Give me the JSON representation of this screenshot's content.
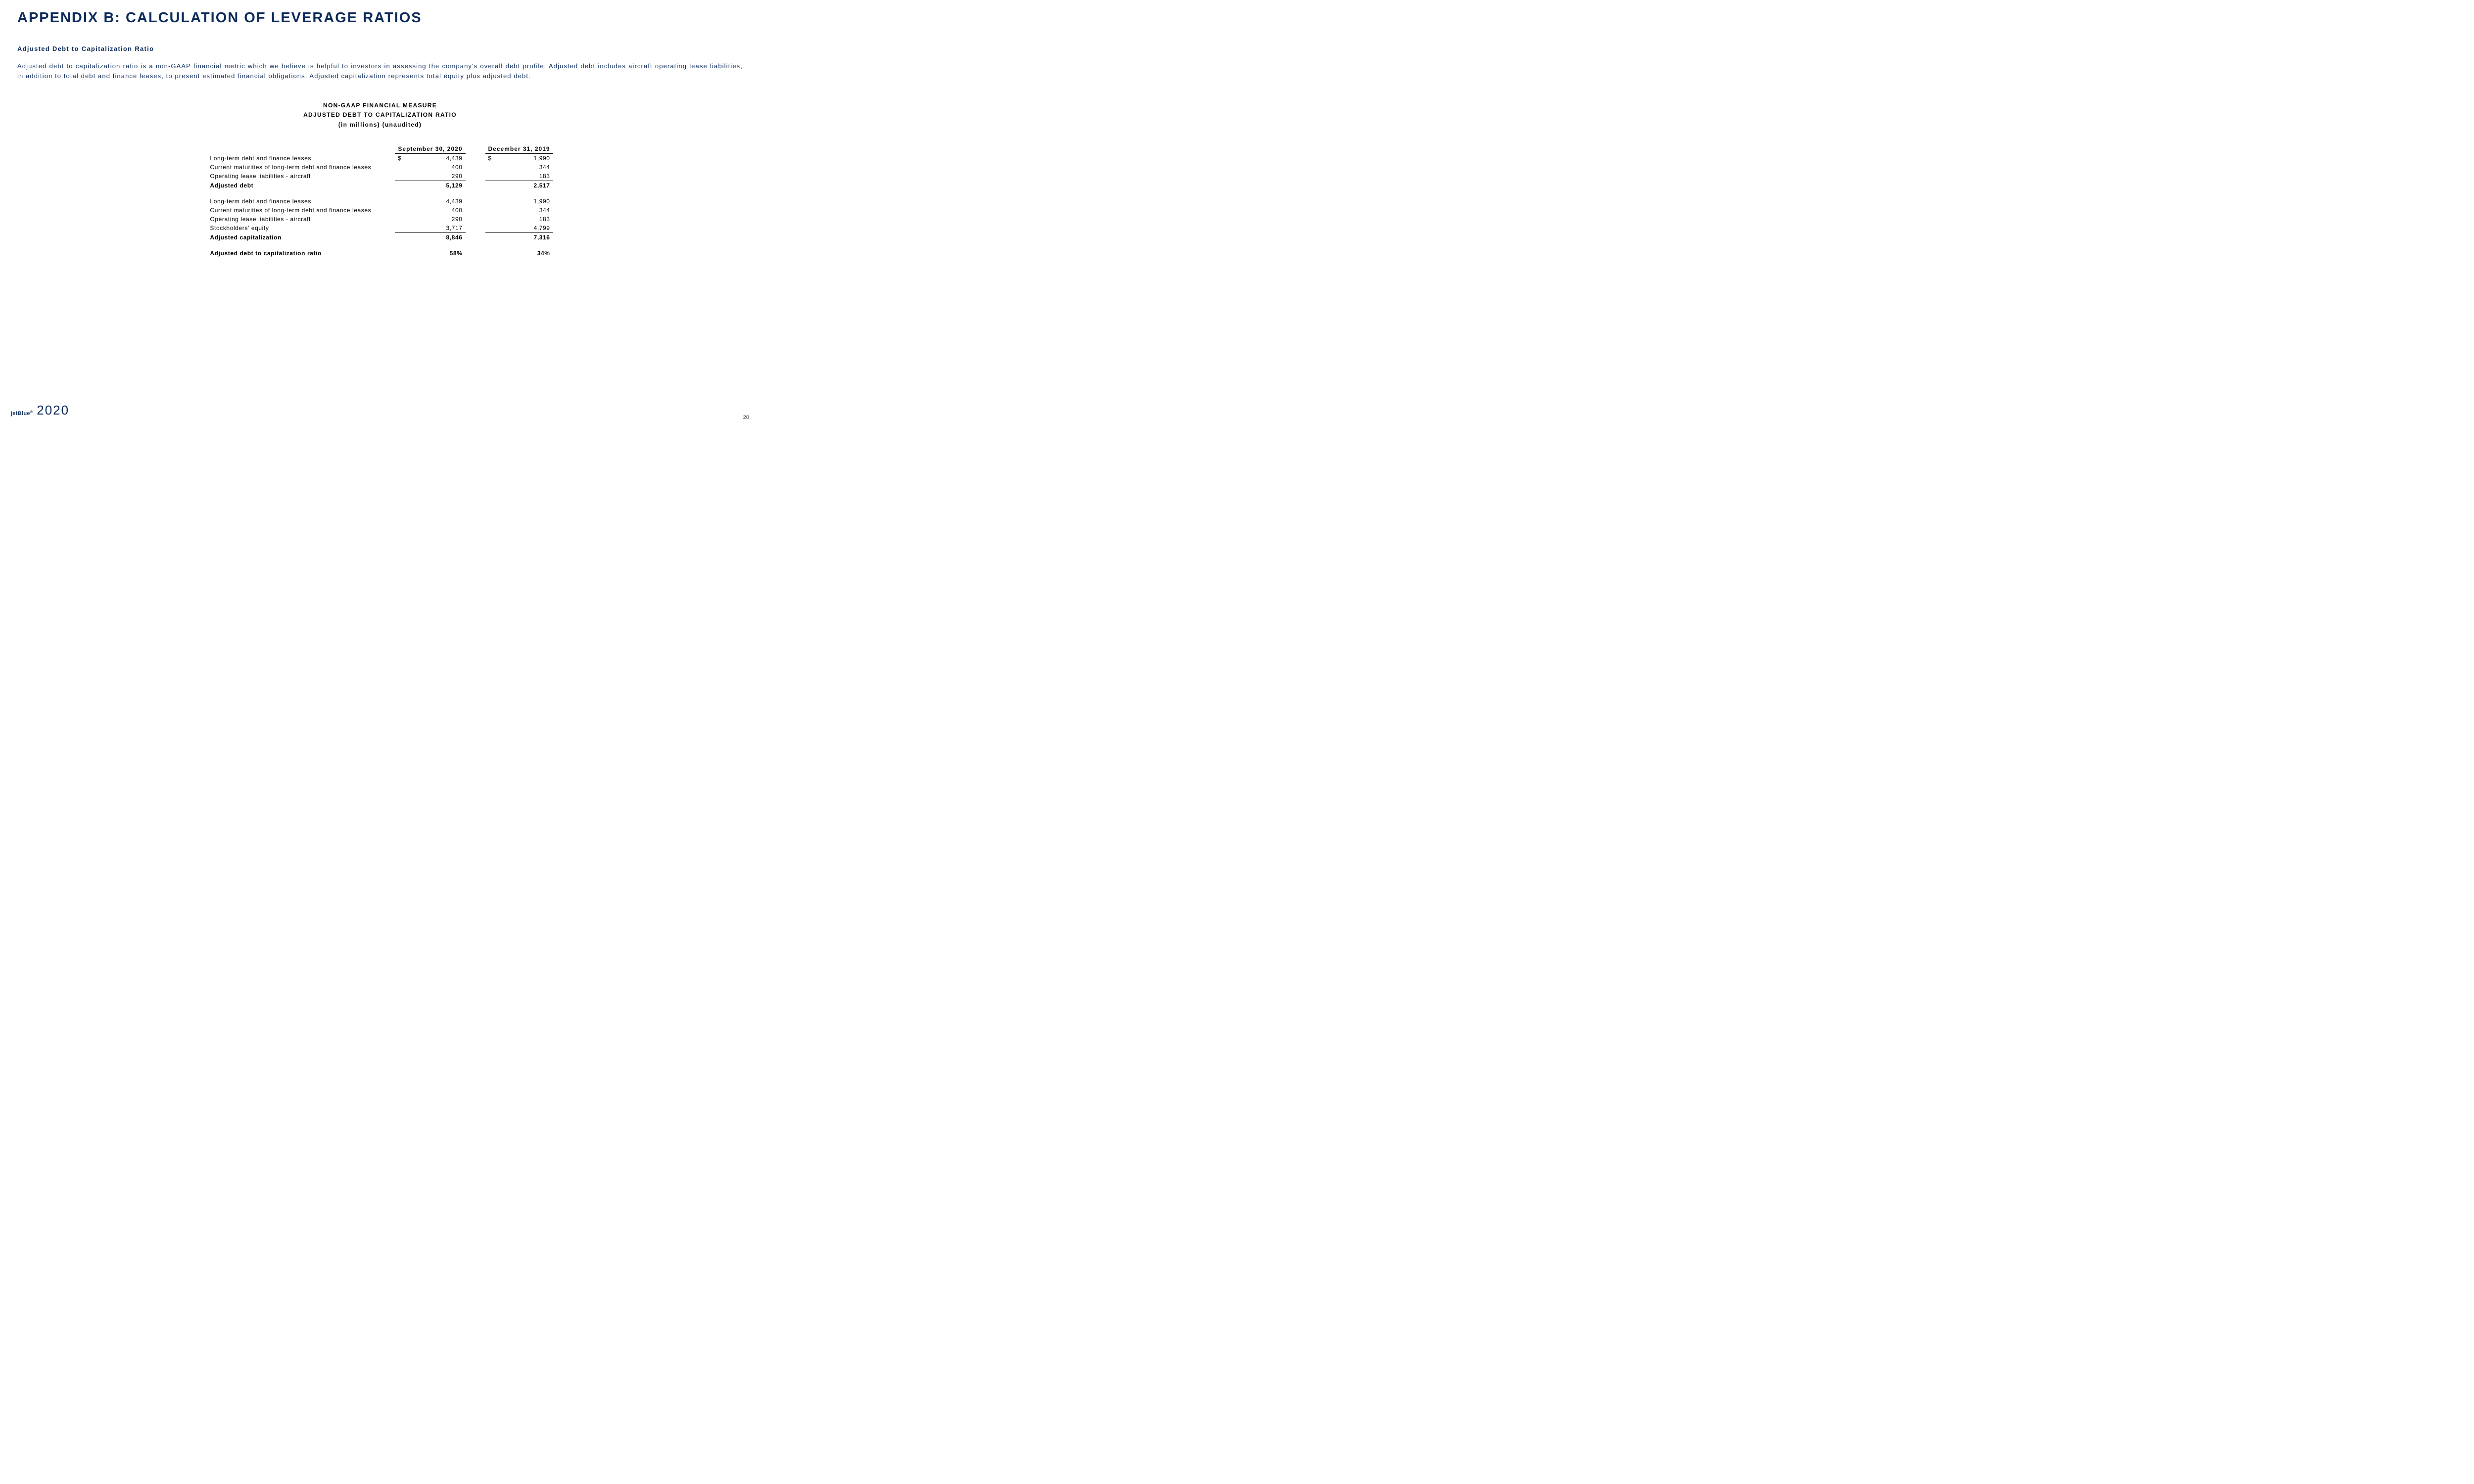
{
  "title": "APPENDIX B: CALCULATION OF LEVERAGE RATIOS",
  "subtitle": "Adjusted Debt to Capitalization Ratio",
  "body": "Adjusted debt to capitalization ratio is a non-GAAP financial metric which we believe is helpful to investors in assessing the company's overall debt profile. Adjusted debt includes aircraft operating lease liabilities, in addition to total debt and finance leases, to present estimated financial obligations. Adjusted capitalization represents total equity plus adjusted debt.",
  "table_header": {
    "line1": "NON-GAAP FINANCIAL MEASURE",
    "line2": "ADJUSTED DEBT TO CAPITALIZATION RATIO",
    "line3": "(in millions) (unaudited)"
  },
  "columns": {
    "col1": "September 30, 2020",
    "col2": "December 31, 2019"
  },
  "currency": "$",
  "section1": {
    "rows": [
      {
        "label": "Long-term debt and finance leases",
        "v1": "4,439",
        "v2": "1,990",
        "show_sym": true
      },
      {
        "label": "Current maturities of long-term debt and finance leases",
        "v1": "400",
        "v2": "344"
      },
      {
        "label": "Operating lease liabilities - aircraft",
        "v1": "290",
        "v2": "183"
      }
    ],
    "total": {
      "label": "Adjusted debt",
      "v1": "5,129",
      "v2": "2,517"
    }
  },
  "section2": {
    "rows": [
      {
        "label": "Long-term debt and finance leases",
        "v1": "4,439",
        "v2": "1,990"
      },
      {
        "label": "Current maturities of long-term debt and finance leases",
        "v1": "400",
        "v2": "344"
      },
      {
        "label": "Operating lease liabilities - aircraft",
        "v1": "290",
        "v2": "183"
      },
      {
        "label": "Stockholders' equity",
        "v1": "3,717",
        "v2": "4,799"
      }
    ],
    "total": {
      "label": "Adjusted capitalization",
      "v1": "8,846",
      "v2": "7,316"
    }
  },
  "ratio": {
    "label": "Adjusted debt to capitalization ratio",
    "v1": "58%",
    "v2": "34%"
  },
  "footer": {
    "brand": "jetBlue",
    "reg": "®",
    "year": "2020"
  },
  "page_number": "20",
  "colors": {
    "primary": "#0d2b5a",
    "text_black": "#000000",
    "background": "#ffffff"
  },
  "typography": {
    "title_fontsize": 29,
    "subtitle_fontsize": 13,
    "body_fontsize": 13,
    "table_fontsize": 12
  }
}
